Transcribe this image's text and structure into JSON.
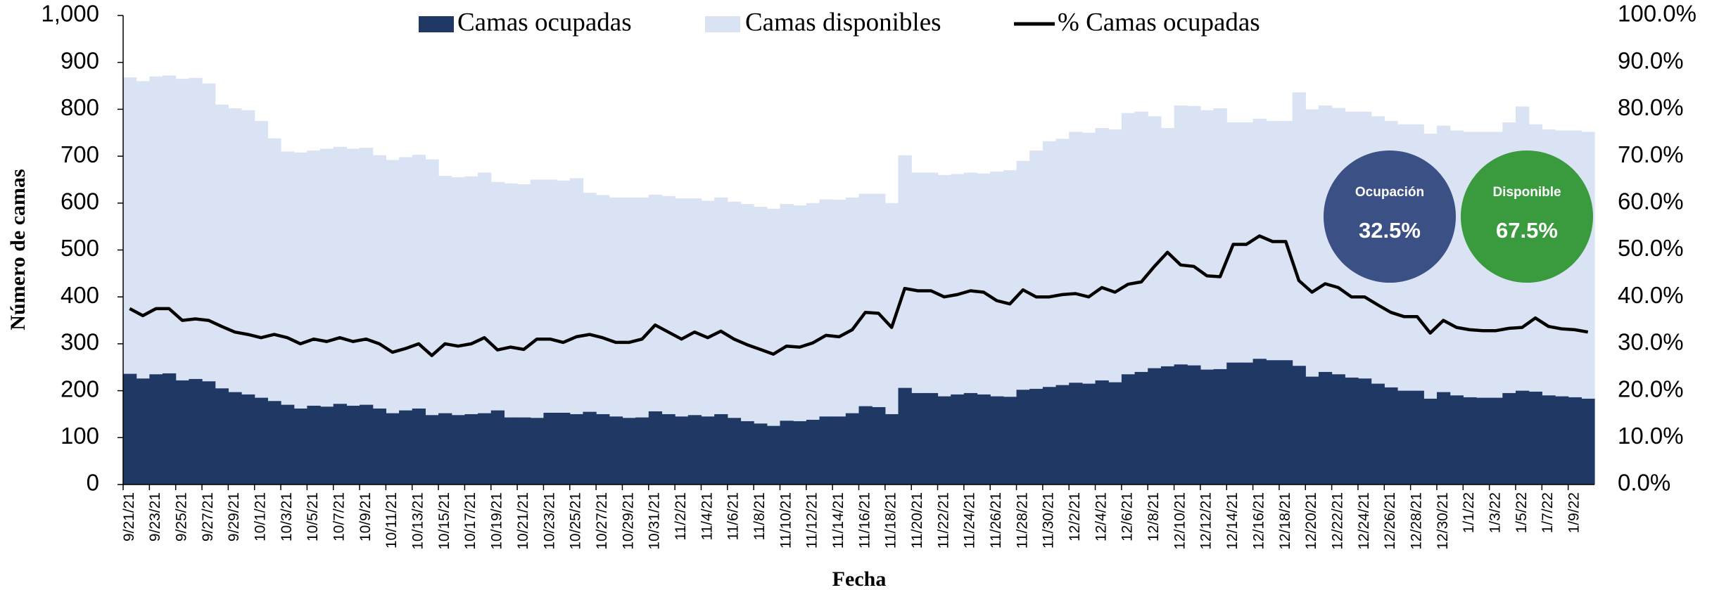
{
  "chart_data": {
    "type": "bar",
    "xlabel": "Fecha",
    "ylabel": "Número de camas",
    "categories": [
      "9/21/21",
      null,
      "9/23/21",
      null,
      "9/25/21",
      null,
      "9/27/21",
      null,
      "9/29/21",
      null,
      "10/1/21",
      null,
      "10/3/21",
      null,
      "10/5/21",
      null,
      "10/7/21",
      null,
      "10/9/21",
      null,
      "10/11/21",
      null,
      "10/13/21",
      null,
      "10/15/21",
      null,
      "10/17/21",
      null,
      "10/19/21",
      null,
      "10/21/21",
      null,
      "10/23/21",
      null,
      "10/25/21",
      null,
      "10/27/21",
      null,
      "10/29/21",
      null,
      "10/31/21",
      null,
      "11/2/21",
      null,
      "11/4/21",
      null,
      "11/6/21",
      null,
      "11/8/21",
      null,
      "11/10/21",
      null,
      "11/12/21",
      null,
      "11/14/21",
      null,
      "11/16/21",
      null,
      "11/18/21",
      null,
      "11/20/21",
      null,
      "11/22/21",
      null,
      "11/24/21",
      null,
      "11/26/21",
      null,
      "11/28/21",
      null,
      "11/30/21",
      null,
      "12/2/21",
      null,
      "12/4/21",
      null,
      "12/6/21",
      null,
      "12/8/21",
      null,
      "12/10/21",
      null,
      "12/12/21",
      null,
      "12/14/21",
      null,
      "12/16/21",
      null,
      "12/18/21",
      null,
      "12/20/21",
      null,
      "12/22/21",
      null,
      "12/24/21",
      null,
      "12/26/21",
      null,
      "12/28/21",
      null,
      "12/30/21",
      null,
      "1/1/22",
      null,
      "1/3/22",
      null,
      "1/5/22",
      null,
      "1/7/22",
      null,
      "1/9/22",
      null
    ],
    "series": [
      {
        "name": "Camas ocupadas",
        "color": "#203864",
        "values": [
          236,
          226,
          235,
          237,
          222,
          225,
          220,
          205,
          197,
          192,
          185,
          178,
          170,
          162,
          168,
          166,
          172,
          168,
          170,
          162,
          152,
          158,
          162,
          148,
          152,
          148,
          150,
          152,
          158,
          143,
          143,
          142,
          153,
          153,
          150,
          155,
          150,
          145,
          142,
          143,
          156,
          150,
          145,
          148,
          145,
          150,
          142,
          135,
          130,
          125,
          136,
          135,
          138,
          145,
          145,
          152,
          167,
          165,
          150,
          206,
          195,
          195,
          188,
          192,
          195,
          192,
          188,
          187,
          202,
          204,
          208,
          212,
          217,
          215,
          222,
          218,
          235,
          240,
          248,
          252,
          256,
          254,
          245,
          246,
          260,
          260,
          268,
          265,
          265,
          253,
          230,
          240,
          235,
          228,
          226,
          215,
          207,
          200,
          200,
          183,
          197,
          190,
          186,
          185,
          185,
          195,
          200,
          198,
          190,
          188,
          186,
          183
        ]
      },
      {
        "name": "Camas disponibles",
        "color": "#dae3f3",
        "values": [
          868,
          860,
          870,
          872,
          865,
          867,
          855,
          810,
          802,
          798,
          775,
          738,
          710,
          708,
          712,
          716,
          720,
          716,
          718,
          702,
          692,
          698,
          703,
          693,
          658,
          655,
          657,
          665,
          645,
          642,
          640,
          650,
          650,
          648,
          653,
          622,
          617,
          612,
          612,
          612,
          618,
          615,
          610,
          610,
          605,
          612,
          603,
          598,
          592,
          588,
          598,
          595,
          600,
          608,
          607,
          612,
          620,
          620,
          600,
          702,
          665,
          665,
          660,
          662,
          665,
          663,
          667,
          670,
          690,
          712,
          732,
          737,
          752,
          750,
          760,
          757,
          792,
          795,
          785,
          760,
          808,
          807,
          798,
          802,
          772,
          772,
          780,
          775,
          775,
          836,
          800,
          808,
          803,
          795,
          795,
          785,
          775,
          768,
          768,
          748,
          765,
          755,
          752,
          752,
          752,
          772,
          806,
          768,
          757,
          755,
          755,
          752
        ]
      },
      {
        "name": "% Camas ocupadas",
        "color": "#000000",
        "type": "line",
        "axis": "y2",
        "values": [
          37.5,
          36,
          37.5,
          37.5,
          35,
          35.3,
          35,
          33.7,
          32.5,
          32,
          31.3,
          32,
          31.3,
          30,
          31,
          30.5,
          31.3,
          30.5,
          31,
          30,
          28.2,
          29,
          30,
          27.5,
          30,
          29.5,
          30,
          31.3,
          28.7,
          29.3,
          28.8,
          31,
          31,
          30.3,
          31.5,
          32,
          31.3,
          30.3,
          30.3,
          31,
          34,
          32.5,
          31,
          32.5,
          31.3,
          32.7,
          31,
          29.8,
          28.8,
          27.8,
          29.5,
          29.3,
          30.2,
          31.8,
          31.5,
          33,
          36.7,
          36.5,
          33.5,
          41.8,
          41.3,
          41.3,
          40,
          40.5,
          41.3,
          41,
          39.2,
          38.5,
          41.5,
          40,
          40,
          40.5,
          40.7,
          40,
          42,
          41,
          42.7,
          43.2,
          46.5,
          49.5,
          46.8,
          46.5,
          44.5,
          44.3,
          51.2,
          51.2,
          53,
          51.8,
          51.8,
          43.5,
          41,
          42.8,
          42,
          40,
          40,
          38.3,
          36.7,
          35.8,
          35.8,
          32.3,
          35,
          33.5,
          33,
          32.8,
          32.8,
          33.3,
          33.5,
          35.5,
          33.7,
          33.2,
          33,
          32.5
        ]
      }
    ],
    "ylim": [
      0,
      1000
    ],
    "yticks": [
      0,
      100,
      200,
      300,
      400,
      500,
      600,
      700,
      800,
      900,
      {
        "value": 1000,
        "label": "1,000"
      }
    ],
    "y2lim": [
      0,
      100
    ],
    "y2ticks": [
      {
        "value": 0,
        "label": "0.0%"
      },
      {
        "value": 10,
        "label": "10.0%"
      },
      {
        "value": 20,
        "label": "20.0%"
      },
      {
        "value": 30,
        "label": "30.0%"
      },
      {
        "value": 40,
        "label": "40.0%"
      },
      {
        "value": 50,
        "label": "50.0%"
      },
      {
        "value": 60,
        "label": "60.0%"
      },
      {
        "value": 70,
        "label": "70.0%"
      },
      {
        "value": 80,
        "label": "80.0%"
      },
      {
        "value": 90,
        "label": "90.0%"
      },
      {
        "value": 100,
        "label": "100.0%"
      }
    ],
    "legend": "top",
    "annotations": [
      {
        "text": "Ocupación",
        "value": "32.5%",
        "color": "#3b5186"
      },
      {
        "text": "Disponible",
        "value": "67.5%",
        "color": "#3a9a3e"
      }
    ]
  }
}
